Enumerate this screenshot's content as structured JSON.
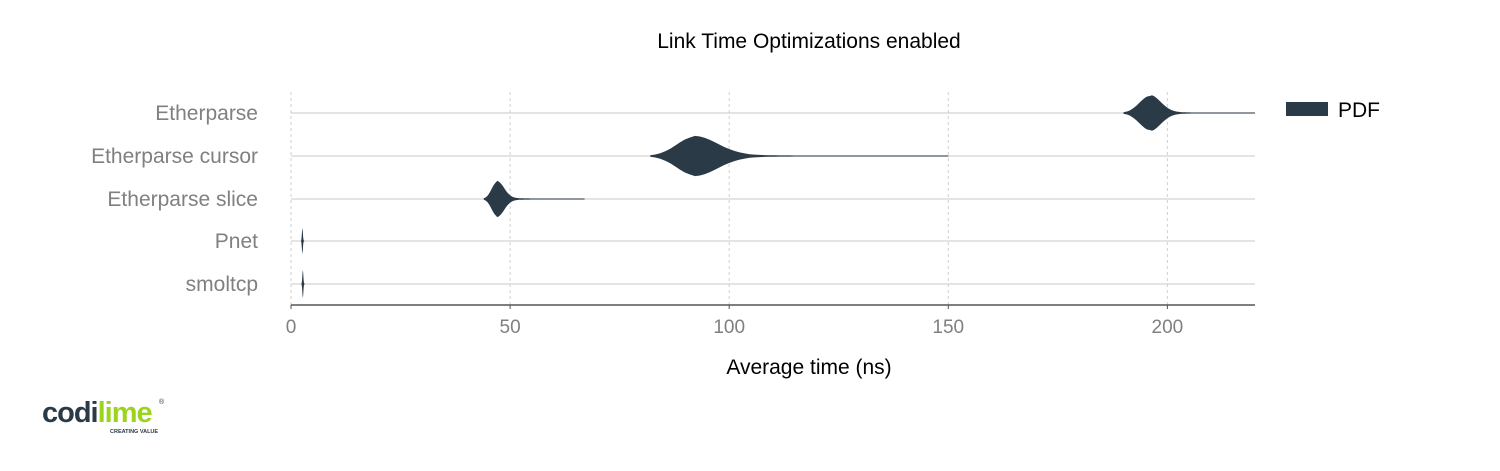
{
  "chart_data": {
    "type": "violin",
    "title": "Link Time Optimizations enabled",
    "xlabel": "Average time (ns)",
    "ylabel": "",
    "xlim": [
      0,
      220
    ],
    "xticks": [
      0,
      50,
      100,
      150,
      200
    ],
    "grid": true,
    "legend_position": "top-right",
    "categories": [
      "Etherparse",
      "Etherparse cursor",
      "Etherparse slice",
      "Pnet",
      "smoltcp"
    ],
    "series": [
      {
        "name": "PDF",
        "color": "#2b3a47",
        "values": [
          {
            "category": "Etherparse",
            "peak": 196,
            "min": 190,
            "max": 220
          },
          {
            "category": "Etherparse cursor",
            "peak": 92,
            "min": 82,
            "max": 150
          },
          {
            "category": "Etherparse slice",
            "peak": 47,
            "min": 44,
            "max": 67
          },
          {
            "category": "Pnet",
            "peak": 2.6,
            "min": 2.3,
            "max": 3.0
          },
          {
            "category": "smoltcp",
            "peak": 2.7,
            "min": 2.4,
            "max": 3.1
          }
        ]
      }
    ]
  },
  "logo": {
    "text": "codilime",
    "tagline": "CREATING VALUE",
    "registered": "®",
    "accent": "#9bd41e"
  }
}
